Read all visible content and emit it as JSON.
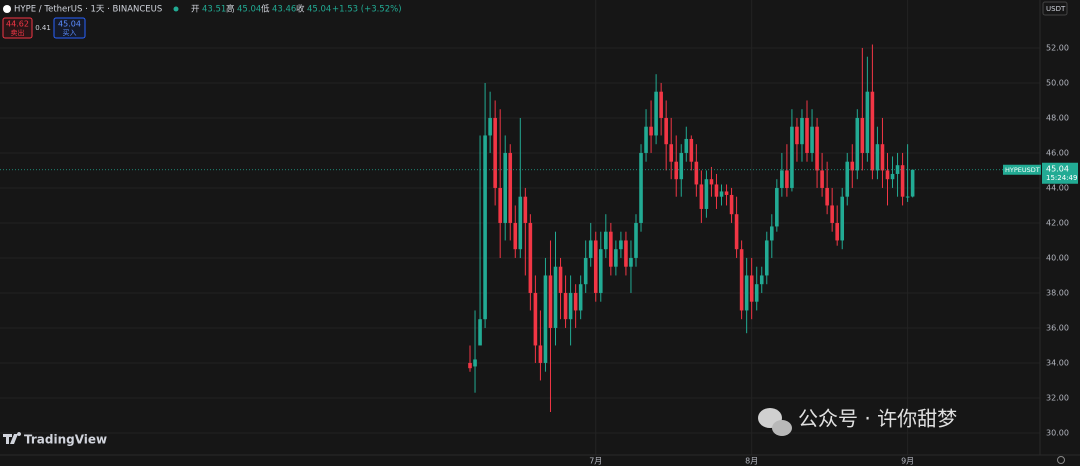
{
  "header": {
    "symbol": "HYPE / TetherUS · 1天 · BINANCEUS",
    "open_label": "开",
    "open": "43.51",
    "high_label": "高",
    "high": "45.04",
    "low_label": "低",
    "low": "43.46",
    "close_label": "收",
    "close": "45.04",
    "change": "+1.53 (+3.52%)"
  },
  "trade": {
    "sell_price": "44.62",
    "sell_label": "卖出",
    "spread": "0.41",
    "buy_price": "45.04",
    "buy_label": "买入"
  },
  "currency": "USDT",
  "watermark": "TradingView",
  "wechat": "公众号 · 许你甜梦",
  "chart_data": {
    "type": "candlestick",
    "categories": [
      null,
      null,
      null,
      null,
      null,
      null,
      null,
      null,
      null,
      null,
      null,
      null,
      null,
      null,
      null,
      null,
      null,
      null,
      null,
      null,
      null,
      null,
      null,
      null,
      null,
      "7月",
      null,
      null,
      null,
      null,
      null,
      null,
      null,
      null,
      null,
      null,
      null,
      null,
      null,
      null,
      null,
      null,
      null,
      null,
      null,
      null,
      null,
      null,
      null,
      null,
      null,
      null,
      null,
      null,
      null,
      null,
      "8月",
      null,
      null,
      null,
      null,
      null,
      null,
      null,
      null,
      null,
      null,
      null,
      null,
      null,
      null,
      null,
      null,
      null,
      null,
      null,
      null,
      null,
      null,
      null,
      null,
      null,
      null,
      null,
      null,
      null,
      null,
      "9月",
      null
    ],
    "open": [
      34,
      33.8,
      35,
      36.5,
      47,
      48,
      44,
      42,
      46,
      42,
      40.5,
      43.5,
      42,
      38,
      35,
      34,
      39,
      36,
      39.5,
      38,
      36.5,
      38,
      37,
      38.5,
      40,
      41,
      38,
      40.5,
      41.5,
      39.5,
      40.5,
      41,
      39.5,
      40,
      42,
      46,
      47.5,
      47,
      49.5,
      48,
      46.5,
      45.5,
      44.5,
      46,
      46.8,
      45.5,
      44.2,
      42.8,
      44.5,
      44.2,
      43.5,
      43.8,
      43.6,
      42.5,
      40.5,
      37,
      39,
      37.5,
      38.5,
      39,
      41,
      41.8,
      44,
      45,
      44,
      47.5,
      46.5,
      48,
      46,
      47.5,
      45,
      44,
      43,
      42,
      41,
      43.5,
      45.5,
      45,
      48,
      46,
      49.5,
      45,
      46.5,
      45,
      44.5,
      44.8,
      45.3,
      43.5,
      43.51
    ],
    "high": [
      35,
      37,
      47,
      50,
      49.5,
      49,
      48.5,
      47,
      46.5,
      43,
      48,
      44,
      42.5,
      39,
      37,
      40,
      41,
      41.5,
      40,
      39,
      39,
      38.5,
      39,
      41,
      42,
      41.5,
      41.5,
      42.5,
      42,
      41,
      41.5,
      41.5,
      41,
      42.5,
      46.5,
      48.5,
      49,
      50.5,
      50,
      49,
      48,
      47,
      46.5,
      47.5,
      47,
      46.5,
      45,
      45,
      45.2,
      44.8,
      44.2,
      44.2,
      44,
      43.5,
      41,
      40,
      40,
      39.5,
      39.5,
      41.5,
      42.5,
      44.5,
      46,
      46.5,
      48.5,
      48,
      48.5,
      49,
      48.5,
      48,
      46,
      45.5,
      44,
      43,
      44,
      46,
      46.5,
      48.5,
      52,
      51.5,
      52.2,
      47.5,
      48,
      46,
      45.8,
      46,
      46,
      46.5,
      45.04
    ],
    "low": [
      33.5,
      32.3,
      35,
      36,
      46,
      43,
      40,
      41,
      41,
      40,
      40,
      39,
      37,
      34,
      33,
      33.5,
      31.2,
      35,
      36.5,
      36,
      35,
      36,
      36.5,
      38,
      39.5,
      37.5,
      37.5,
      40,
      39,
      39,
      40,
      39,
      38,
      39.5,
      41.5,
      45.5,
      46,
      46.5,
      47,
      45,
      44.5,
      43.5,
      43.5,
      45.5,
      45,
      43.5,
      42,
      42.3,
      43.5,
      42.8,
      43,
      43,
      42,
      40,
      36.5,
      35.7,
      36.5,
      37,
      38,
      38.5,
      40,
      41.5,
      43.5,
      43.5,
      43.8,
      45.5,
      45.5,
      45.5,
      45.5,
      44,
      43.5,
      42.5,
      41.5,
      40.7,
      40.5,
      43,
      44,
      44.5,
      45,
      45.5,
      44.5,
      44.5,
      44,
      43,
      44,
      43.5,
      43,
      43.2,
      43.46
    ],
    "close": [
      33.7,
      34.2,
      36.5,
      47,
      48,
      44,
      42,
      46,
      42,
      40.5,
      43.5,
      42,
      38,
      35,
      34,
      39,
      36,
      39.5,
      38,
      36.5,
      38,
      37,
      38.5,
      40,
      41,
      38,
      40.5,
      41.5,
      39.5,
      40.5,
      41,
      39.5,
      40,
      42,
      46,
      47.5,
      47,
      49.5,
      48,
      46.5,
      45.5,
      44.5,
      46,
      46.8,
      45.5,
      44.2,
      42.8,
      44.5,
      44.2,
      43.5,
      43.8,
      43.6,
      42.5,
      40.5,
      37,
      39,
      37.5,
      38.5,
      39,
      41,
      41.8,
      44,
      45,
      44,
      47.5,
      46.5,
      48,
      46,
      47.5,
      45,
      44,
      43,
      42,
      41,
      43.5,
      45.5,
      45,
      48,
      46,
      49.5,
      45,
      46.5,
      45,
      44.5,
      44.8,
      45.3,
      43.5,
      43.51,
      45.04
    ],
    "up_color": "#22ab94",
    "down_color": "#f23645",
    "ylim": [
      28.74,
      54.74
    ],
    "yticks": [
      {
        "value": 30,
        "label": "30.00"
      },
      {
        "value": 32,
        "label": "32.00"
      },
      {
        "value": 34,
        "label": "34.00"
      },
      {
        "value": 36,
        "label": "36.00"
      },
      {
        "value": 38,
        "label": "38.00"
      },
      {
        "value": 40,
        "label": "40.00"
      },
      {
        "value": 42,
        "label": "42.00"
      },
      {
        "value": 44,
        "label": "44.00"
      },
      {
        "value": 46,
        "label": "46.00"
      },
      {
        "value": 48,
        "label": "48.00"
      },
      {
        "value": 50,
        "label": "50.00"
      },
      {
        "value": 52,
        "label": "52.00"
      }
    ],
    "grid": true,
    "price_tag": {
      "symbol": "HYPEUSDT",
      "price": 45.04,
      "countdown": "15:24:49"
    }
  }
}
